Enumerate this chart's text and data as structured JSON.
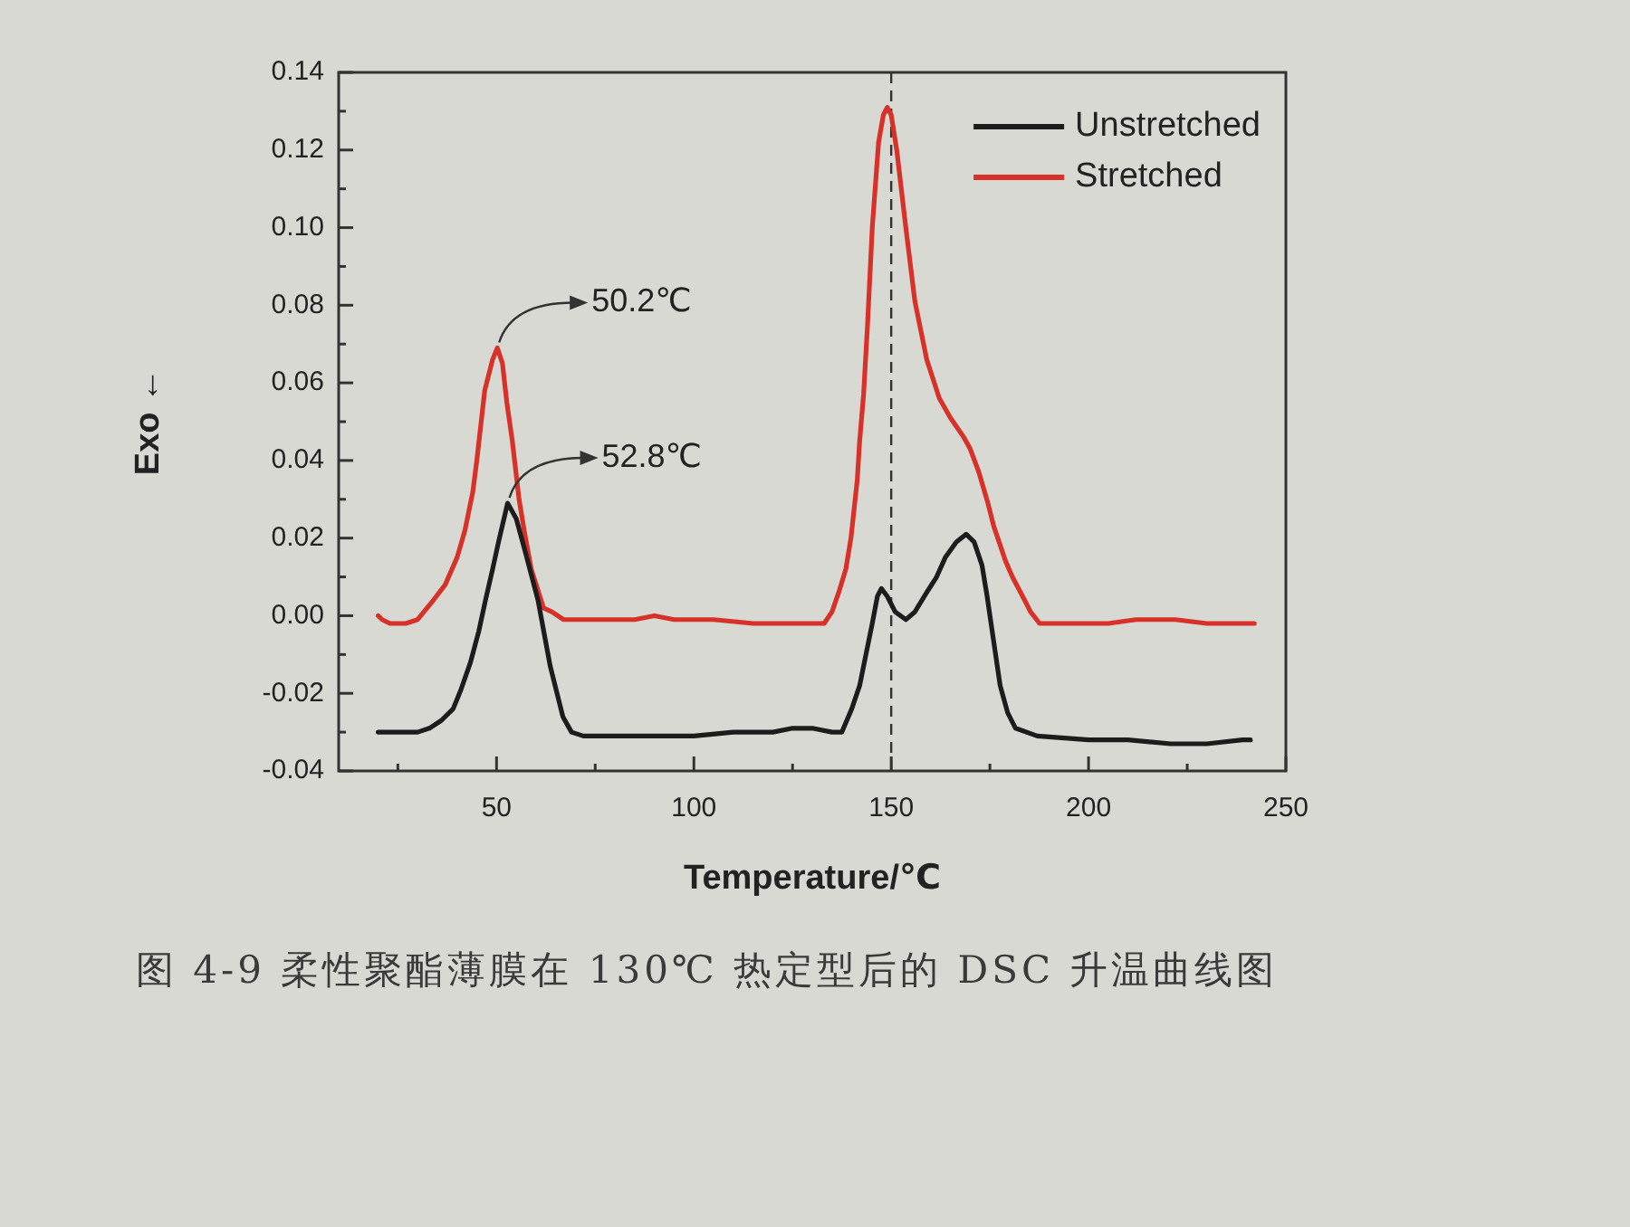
{
  "chart_data": {
    "type": "line",
    "xlabel": "Temperature/℃",
    "ylabel": "Exo ←",
    "legend": "top right",
    "marker": "none",
    "line_style": "solid",
    "xlim": [
      10,
      250
    ],
    "xticks": [
      {
        "value": 25,
        "label": null
      },
      50,
      {
        "value": 75,
        "label": null
      },
      100,
      {
        "value": 125,
        "label": null
      },
      150,
      {
        "value": 175,
        "label": null
      },
      200,
      {
        "value": 225,
        "label": null
      },
      250
    ],
    "ylim": [
      -0.04,
      0.14
    ],
    "yticks": [
      -0.04,
      {
        "value": -0.03,
        "label": null
      },
      -0.02,
      {
        "value": -0.01,
        "label": null
      },
      {
        "value": 0,
        "label": "0.00"
      },
      {
        "value": 0.01,
        "label": null
      },
      0.02,
      {
        "value": 0.03,
        "label": null
      },
      0.04,
      {
        "value": 0.05,
        "label": null
      },
      0.06,
      {
        "value": 0.07,
        "label": null
      },
      0.08,
      {
        "value": 0.09,
        "label": null
      },
      {
        "value": 0.1,
        "label": "0.10"
      },
      {
        "value": 0.11,
        "label": null
      },
      0.12,
      {
        "value": 0.13,
        "label": null
      },
      0.14
    ],
    "ref_lines": [
      {
        "axis": "x",
        "value": 150,
        "color": "#333333",
        "line_style": "dashed"
      }
    ],
    "annotations": [
      {
        "text": "50.2℃",
        "x": 50.2,
        "y": 0.069
      },
      {
        "text": "52.8℃",
        "x": 52.8,
        "y": 0.029
      },
      "图 4-9 柔性聚酯薄膜在 130℃ 热定型后的 DSC 升温曲线图"
    ],
    "series": [
      {
        "name": "Unstretched",
        "color": "#1c1c1c",
        "x": [
          20,
          25,
          30,
          33,
          36,
          39,
          41,
          43.4,
          45.5,
          47.2,
          49,
          50.5,
          52.8,
          55,
          57.4,
          60.5,
          63.6,
          66.8,
          69,
          72,
          80,
          90,
          100,
          110,
          120,
          125,
          130,
          135,
          137.5,
          140,
          142,
          143.6,
          145.2,
          146.5,
          147.5,
          149,
          151,
          153.7,
          156,
          159,
          161.5,
          163.7,
          166.5,
          169,
          171,
          173,
          174.3,
          175.3,
          177.6,
          179.5,
          181.5,
          187,
          200,
          210,
          220.8,
          230,
          239,
          241
        ],
        "values": [
          -0.03,
          -0.03,
          -0.03,
          -0.029,
          -0.027,
          -0.024,
          -0.019,
          -0.012,
          -0.004,
          0.004,
          0.012,
          0.019,
          0.029,
          0.025,
          0.016,
          0.004,
          -0.013,
          -0.026,
          -0.03,
          -0.031,
          -0.031,
          -0.031,
          -0.031,
          -0.03,
          -0.03,
          -0.029,
          -0.029,
          -0.03,
          -0.03,
          -0.024,
          -0.018,
          -0.01,
          -0.002,
          0.005,
          0.007,
          0.005,
          0.001,
          -0.001,
          0.001,
          0.006,
          0.01,
          0.015,
          0.019,
          0.021,
          0.019,
          0.013,
          0.005,
          -0.002,
          -0.018,
          -0.025,
          -0.029,
          -0.031,
          -0.032,
          -0.032,
          -0.033,
          -0.033,
          -0.032,
          -0.032
        ]
      },
      {
        "name": "Stretched",
        "color": "#d8312a",
        "x": [
          20,
          21,
          23,
          27,
          30,
          34,
          37,
          40,
          42,
          44,
          45,
          47,
          49,
          50.2,
          51.5,
          52.6,
          54,
          55.7,
          57,
          58.8,
          61.9,
          64,
          67,
          75,
          85,
          90,
          95,
          105,
          115,
          120,
          130,
          133,
          135,
          136.7,
          138.5,
          139.8,
          141.4,
          142,
          143,
          144,
          145.2,
          146.8,
          148,
          149,
          150,
          151.4,
          153.7,
          156,
          159,
          162.2,
          165,
          168.4,
          170,
          172.2,
          174.5,
          176,
          179,
          180.7,
          183.8,
          185.3,
          187.6,
          195,
          205,
          212,
          217.6,
          222,
          230,
          242
        ],
        "values": [
          0,
          -0.001,
          -0.002,
          -0.002,
          -0.001,
          0.004,
          0.008,
          0.015,
          0.022,
          0.032,
          0.04,
          0.058,
          0.066,
          0.069,
          0.065,
          0.055,
          0.045,
          0.03,
          0.022,
          0.012,
          0.002,
          0.001,
          -0.001,
          -0.001,
          -0.001,
          0,
          -0.001,
          -0.001,
          -0.002,
          -0.002,
          -0.002,
          -0.002,
          0.001,
          0.006,
          0.012,
          0.02,
          0.035,
          0.045,
          0.057,
          0.075,
          0.1,
          0.122,
          0.129,
          0.131,
          0.129,
          0.12,
          0.1,
          0.081,
          0.066,
          0.056,
          0.051,
          0.046,
          0.043,
          0.037,
          0.029,
          0.023,
          0.014,
          0.01,
          0.004,
          0.001,
          -0.002,
          -0.002,
          -0.002,
          -0.001,
          -0.001,
          -0.001,
          -0.002,
          -0.002
        ]
      }
    ]
  }
}
